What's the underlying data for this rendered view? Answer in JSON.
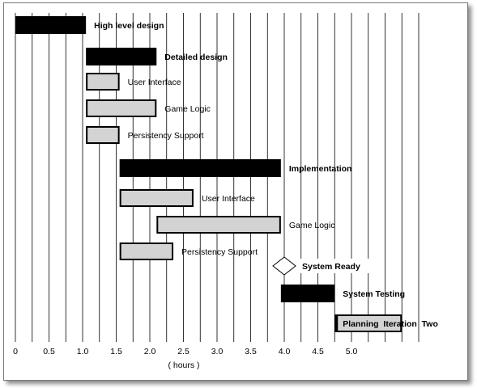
{
  "chart_data": {
    "type": "gantt",
    "title": "",
    "xlabel": "( hours )",
    "ylabel": "",
    "xlim": [
      0,
      6
    ],
    "x_ticks": [
      "0",
      "0.5",
      "1.0",
      "1.5",
      "2.0",
      "2.5",
      "3.0",
      "3.5",
      "4.0",
      "4.5",
      "5.0"
    ],
    "grid": "vertical",
    "colors": {
      "summary": "#000000",
      "subtask": "#d3d3d3",
      "milestone": "#ffffff",
      "grid": "#000000"
    },
    "tasks": [
      {
        "label": "High level design",
        "start": 0.0,
        "end": 1.05,
        "kind": "summary"
      },
      {
        "label": "Detailed design",
        "start": 1.05,
        "end": 2.1,
        "kind": "summary"
      },
      {
        "label": "User Interface",
        "start": 1.05,
        "end": 1.55,
        "kind": "subtask"
      },
      {
        "label": "Game Logic",
        "start": 1.05,
        "end": 2.1,
        "kind": "subtask"
      },
      {
        "label": "Persistency Support",
        "start": 1.05,
        "end": 1.55,
        "kind": "subtask"
      },
      {
        "label": "Implementation",
        "start": 1.55,
        "end": 3.95,
        "kind": "summary"
      },
      {
        "label": "User Interface",
        "start": 1.55,
        "end": 2.65,
        "kind": "subtask"
      },
      {
        "label": "Game Logic",
        "start": 2.1,
        "end": 3.95,
        "kind": "subtask"
      },
      {
        "label": "Persistency Support",
        "start": 1.55,
        "end": 2.35,
        "kind": "subtask"
      },
      {
        "label": "System Ready",
        "start": 4.0,
        "end": 4.0,
        "kind": "milestone"
      },
      {
        "label": "System Testing",
        "start": 3.95,
        "end": 4.75,
        "kind": "summary"
      },
      {
        "label": "Planning  Iteration  Two",
        "start": 4.75,
        "end": 5.75,
        "kind": "subtask"
      }
    ]
  }
}
